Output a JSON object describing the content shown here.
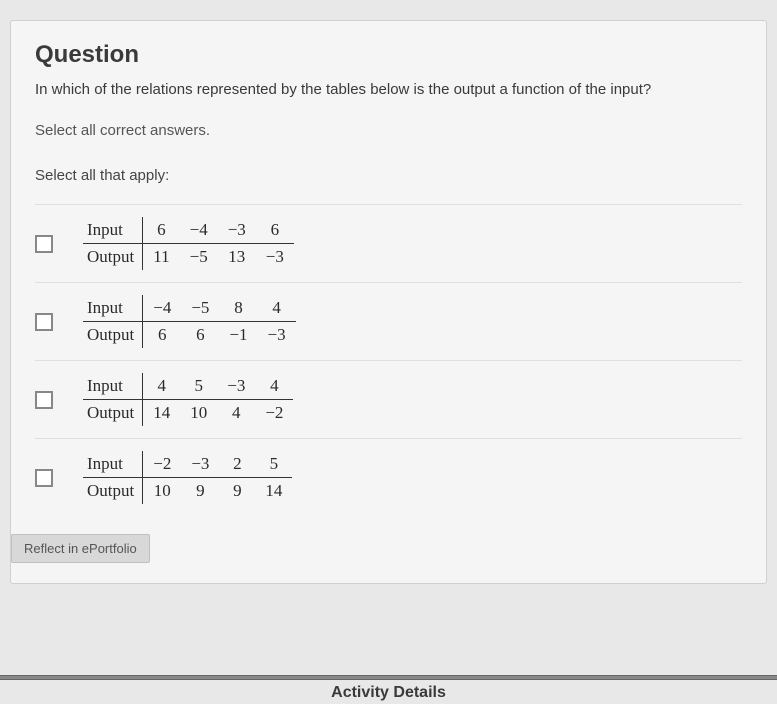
{
  "question": {
    "title": "Question",
    "text": "In which of the relations represented by the tables below is the output a function of the input?",
    "instruction": "Select all correct answers.",
    "select_all": "Select all that apply:"
  },
  "labels": {
    "input": "Input",
    "output": "Output"
  },
  "tables": [
    {
      "input": [
        "6",
        "−4",
        "−3",
        "6"
      ],
      "output": [
        "11",
        "−5",
        "13",
        "−3"
      ]
    },
    {
      "input": [
        "−4",
        "−5",
        "8",
        "4"
      ],
      "output": [
        "6",
        "6",
        "−1",
        "−3"
      ]
    },
    {
      "input": [
        "4",
        "5",
        "−3",
        "4"
      ],
      "output": [
        "14",
        "10",
        "4",
        "−2"
      ]
    },
    {
      "input": [
        "−2",
        "−3",
        "2",
        "5"
      ],
      "output": [
        "10",
        "9",
        "9",
        "14"
      ]
    }
  ],
  "reflect": "Reflect in ePortfolio",
  "activity": "Activity Details",
  "style": {
    "body_bg": "#e8e8e8",
    "panel_bg": "#f5f5f5",
    "panel_border": "#d0d0d0",
    "text_color": "#3a3a3a",
    "table_border": "#333333",
    "checkbox_border": "#888888",
    "title_fontsize": 24,
    "body_fontsize": 15,
    "table_fontsize": 17,
    "table_font": "Times New Roman"
  }
}
